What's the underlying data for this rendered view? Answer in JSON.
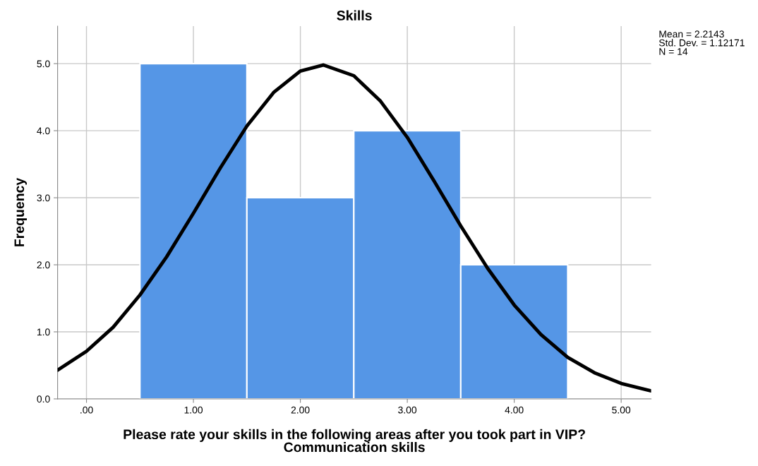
{
  "chart_data": {
    "type": "histogram",
    "title": "Skills",
    "xlabel": "Please rate your skills in the following areas after you took part in VIP?\nCommunication skills",
    "ylabel": "Frequency",
    "bins": [
      0.5,
      1.5,
      2.5,
      3.5,
      4.5
    ],
    "values": [
      5,
      3,
      4,
      2
    ],
    "color": "#5596e6",
    "series": [
      {
        "type": "line",
        "color": "#000000",
        "x": [
          -0.27,
          0,
          0.25,
          0.5,
          0.75,
          1.0,
          1.25,
          1.5,
          1.75,
          2.0,
          2.2143,
          2.5,
          2.75,
          3.0,
          3.25,
          3.5,
          3.75,
          4.0,
          4.25,
          4.5,
          4.75,
          5.0,
          5.28
        ],
        "values": [
          0.43,
          0.71,
          1.07,
          1.55,
          2.12,
          2.77,
          3.44,
          4.07,
          4.57,
          4.89,
          4.98,
          4.82,
          4.44,
          3.9,
          3.25,
          2.58,
          1.95,
          1.4,
          0.96,
          0.62,
          0.39,
          0.23,
          0.12
        ]
      }
    ],
    "xlim": [
      -0.27,
      5.28
    ],
    "ylim": [
      0,
      5.56
    ],
    "xticks": [
      {
        "value": 0,
        "label": ".00"
      },
      {
        "value": 1,
        "label": "1.00"
      },
      {
        "value": 2,
        "label": "2.00"
      },
      {
        "value": 3,
        "label": "3.00"
      },
      {
        "value": 4,
        "label": "4.00"
      },
      {
        "value": 5,
        "label": "5.00"
      }
    ],
    "yticks": [
      {
        "value": 0,
        "label": "0.0"
      },
      {
        "value": 1,
        "label": "1.0"
      },
      {
        "value": 2,
        "label": "2.0"
      },
      {
        "value": 3,
        "label": "3.0"
      },
      {
        "value": 4,
        "label": "4.0"
      },
      {
        "value": 5,
        "label": "5.0"
      }
    ],
    "grid": true,
    "legend": false,
    "marker": "none",
    "line_style": "solid",
    "annotations": [
      "Mean = 2.2143\nStd. Dev. = 1.12171\nN = 14"
    ]
  }
}
